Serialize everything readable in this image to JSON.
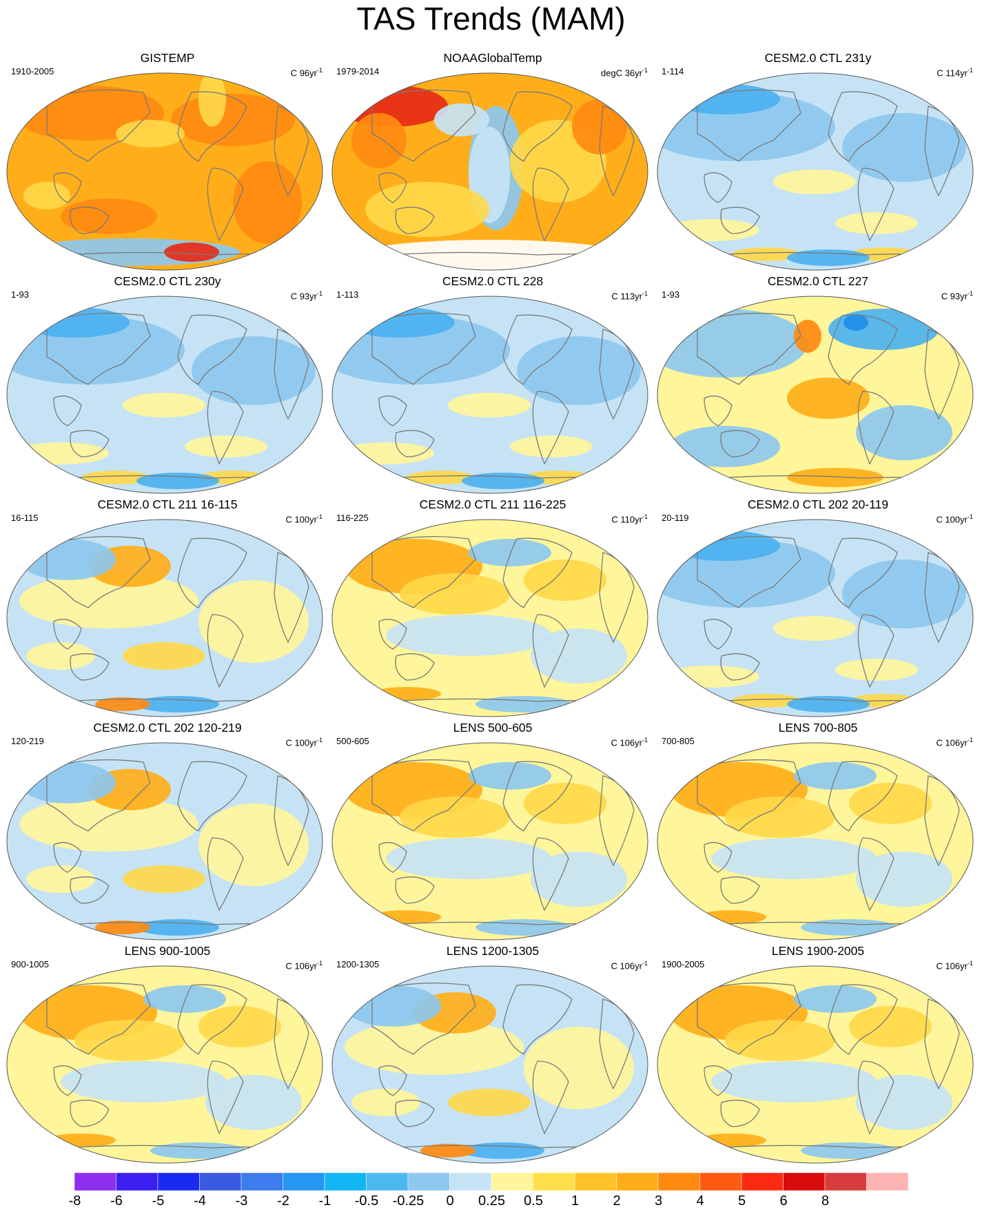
{
  "title": "TAS Trends (MAM)",
  "colors": {
    "orange": "#FFAE1A",
    "dark_orange": "#FF8A10",
    "yellow": "#FFD84A",
    "pale_yellow": "#FFF59A",
    "light_blue": "#C6E3F5",
    "sky_blue": "#8DC8EE",
    "blue": "#4CB1F0",
    "deep_blue": "#1F8EEA",
    "red": "#E62A16",
    "continent_outline": "#7A7A7A",
    "missing": "#FFFFFF"
  },
  "panels": [
    {
      "title": "GISTEMP",
      "period": "1910-2005",
      "units": "C 96yr",
      "scheme": "orange"
    },
    {
      "title": "NOAAGlobalTemp",
      "period": "1979-2014",
      "units": "degC 36yr",
      "scheme": "noaa"
    },
    {
      "title": "CESM2.0 CTL 231y",
      "period": "1-114",
      "units": "C 114yr",
      "scheme": "blue"
    },
    {
      "title": "CESM2.0 CTL 230y",
      "period": "1-93",
      "units": "C 93yr",
      "scheme": "blue"
    },
    {
      "title": "CESM2.0 CTL 228",
      "period": "1-113",
      "units": "C 113yr",
      "scheme": "blue"
    },
    {
      "title": "CESM2.0 CTL 227",
      "period": "1-93",
      "units": "C 93yr",
      "scheme": "mixed_blue"
    },
    {
      "title": "CESM2.0 CTL 211 16-115",
      "period": "16-115",
      "units": "C 100yr",
      "scheme": "mixed"
    },
    {
      "title": "CESM2.0 CTL 211 116-225",
      "period": "116-225",
      "units": "C 110yr",
      "scheme": "mixed_warm"
    },
    {
      "title": "CESM2.0 CTL 202 20-119",
      "period": "20-119",
      "units": "C 100yr",
      "scheme": "blue"
    },
    {
      "title": "CESM2.0 CTL 202 120-219",
      "period": "120-219",
      "units": "C 100yr",
      "scheme": "mixed"
    },
    {
      "title": "LENS 500-605",
      "period": "500-605",
      "units": "C 106yr",
      "scheme": "mixed_warm"
    },
    {
      "title": "LENS 700-805",
      "period": "700-805",
      "units": "C 106yr",
      "scheme": "mixed_warm"
    },
    {
      "title": "LENS 900-1005",
      "period": "900-1005",
      "units": "C 106yr",
      "scheme": "mixed_warm"
    },
    {
      "title": "LENS 1200-1305",
      "period": "1200-1305",
      "units": "C 106yr",
      "scheme": "mixed"
    },
    {
      "title": "LENS 1900-2005",
      "period": "1900-2005",
      "units": "C 106yr",
      "scheme": "mixed_warm"
    }
  ],
  "units_superscript": "-1",
  "colorbar": {
    "labels": [
      "-8",
      "-6",
      "-5",
      "-4",
      "-3",
      "-2",
      "-1",
      "-0.5",
      "-0.25",
      "0",
      "0.25",
      "0.5",
      "1",
      "2",
      "3",
      "4",
      "5",
      "6",
      "8"
    ],
    "colors": [
      "#8E2FF0",
      "#3A1FF0",
      "#1A2AF0",
      "#3A5AE0",
      "#3C7CEC",
      "#2596F4",
      "#12B6F4",
      "#4CB8F0",
      "#8DC8EE",
      "#C6E3F5",
      "#FFF59A",
      "#FFE04A",
      "#FFC228",
      "#FFAE1A",
      "#FF8A10",
      "#FF5A12",
      "#FF2A12",
      "#D80C0C",
      "#D83C3C",
      "#FFB4B4"
    ]
  }
}
